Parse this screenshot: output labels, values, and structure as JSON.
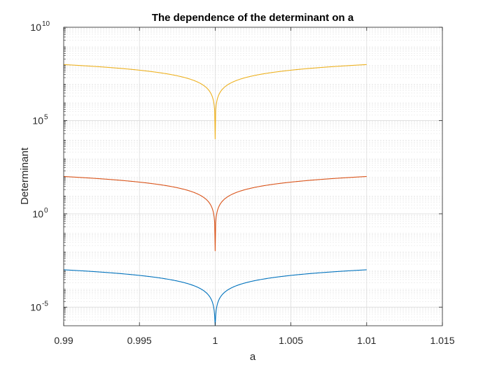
{
  "chart_data": {
    "type": "line",
    "title": "The dependence of the determinant on a",
    "xlabel": "a",
    "ylabel": "Determinant",
    "xlim": [
      0.99,
      1.015
    ],
    "ylim_exponent": [
      -6,
      10
    ],
    "yscale": "log",
    "grid": true,
    "minor_grid_y": true,
    "x_ticks": [
      "0.99",
      "0.995",
      "1",
      "1.005",
      "1.01",
      "1.015"
    ],
    "x_tick_values": [
      0.99,
      0.995,
      1.0,
      1.005,
      1.01,
      1.015
    ],
    "y_ticks": [
      {
        "base": "10",
        "exp": "-5",
        "value_exp": -5
      },
      {
        "base": "10",
        "exp": "0",
        "value_exp": 0
      },
      {
        "base": "10",
        "exp": "5",
        "value_exp": 5
      },
      {
        "base": "10",
        "exp": "10",
        "value_exp": 10
      }
    ],
    "series": [
      {
        "color": "#0072bd",
        "peak_at_edges_exp": -3.0,
        "min_at_center_exp": -6.0,
        "formula": "determinant ≈ 10^(-3.0)·|a-1|/0.01 magnitude curve (log-valley)"
      },
      {
        "color": "#d95319",
        "peak_at_edges_exp": 2.0,
        "min_at_center_exp": -2.0
      },
      {
        "color": "#edb120",
        "peak_at_edges_exp": 8.0,
        "min_at_center_exp": 4.0
      }
    ],
    "x_sample_range": [
      0.99,
      1.01
    ]
  }
}
